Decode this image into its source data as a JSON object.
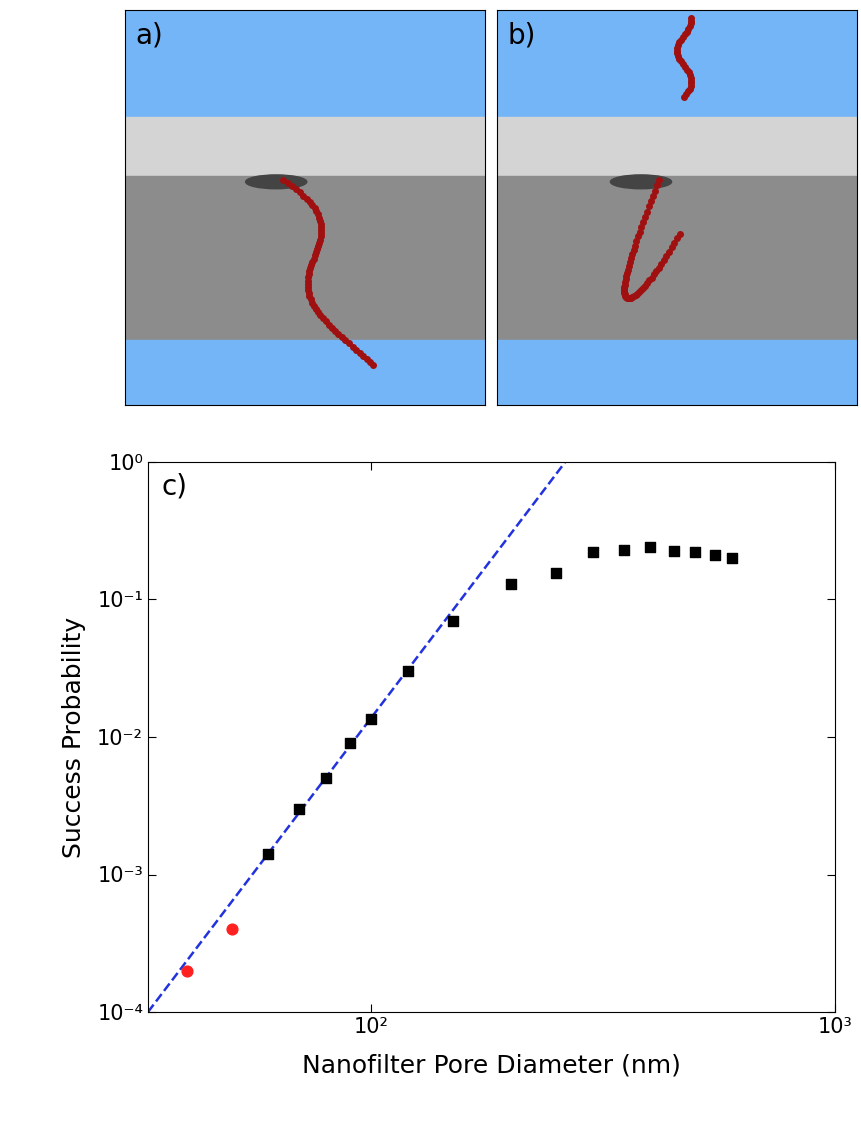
{
  "panel_labels": [
    "a)",
    "b)"
  ],
  "chart_data": {
    "type": "scatter",
    "annotations": [
      "c)"
    ],
    "x_label": "Nanofilter Pore Diameter (nm)",
    "y_label": "Success Probability",
    "log": true,
    "xlim": [
      33,
      1000
    ],
    "ylim": [
      0.0001,
      1
    ],
    "xticks": [
      {
        "value": 100,
        "label": "10²"
      },
      {
        "value": 1000,
        "label": "10³"
      }
    ],
    "yticks": [
      {
        "value": 0.0001,
        "label": "10⁻⁴"
      },
      {
        "value": 0.001,
        "label": "10⁻³"
      },
      {
        "value": 0.01,
        "label": "10⁻²"
      },
      {
        "value": 0.1,
        "label": "10⁻¹"
      },
      {
        "value": 1,
        "label": "10⁰"
      }
    ],
    "series": [
      {
        "type": "scatter",
        "color": "#000000",
        "marker": "square",
        "x": [
          60,
          70,
          80,
          90,
          100,
          120,
          150,
          200,
          250,
          300,
          350,
          400,
          450,
          500,
          550,
          600
        ],
        "values": [
          0.0014,
          0.003,
          0.005,
          0.009,
          0.0135,
          0.03,
          0.07,
          0.13,
          0.155,
          0.22,
          0.23,
          0.24,
          0.225,
          0.22,
          0.21,
          0.2
        ]
      },
      {
        "type": "scatter",
        "color": "#ff2020",
        "marker": "circle",
        "x": [
          40,
          50
        ],
        "values": [
          0.0002,
          0.0004
        ]
      },
      {
        "type": "line",
        "color": "#2233dd",
        "line_style": "dashed",
        "x": [
          33,
          262
        ],
        "values": [
          0.0001,
          1
        ]
      }
    ]
  }
}
